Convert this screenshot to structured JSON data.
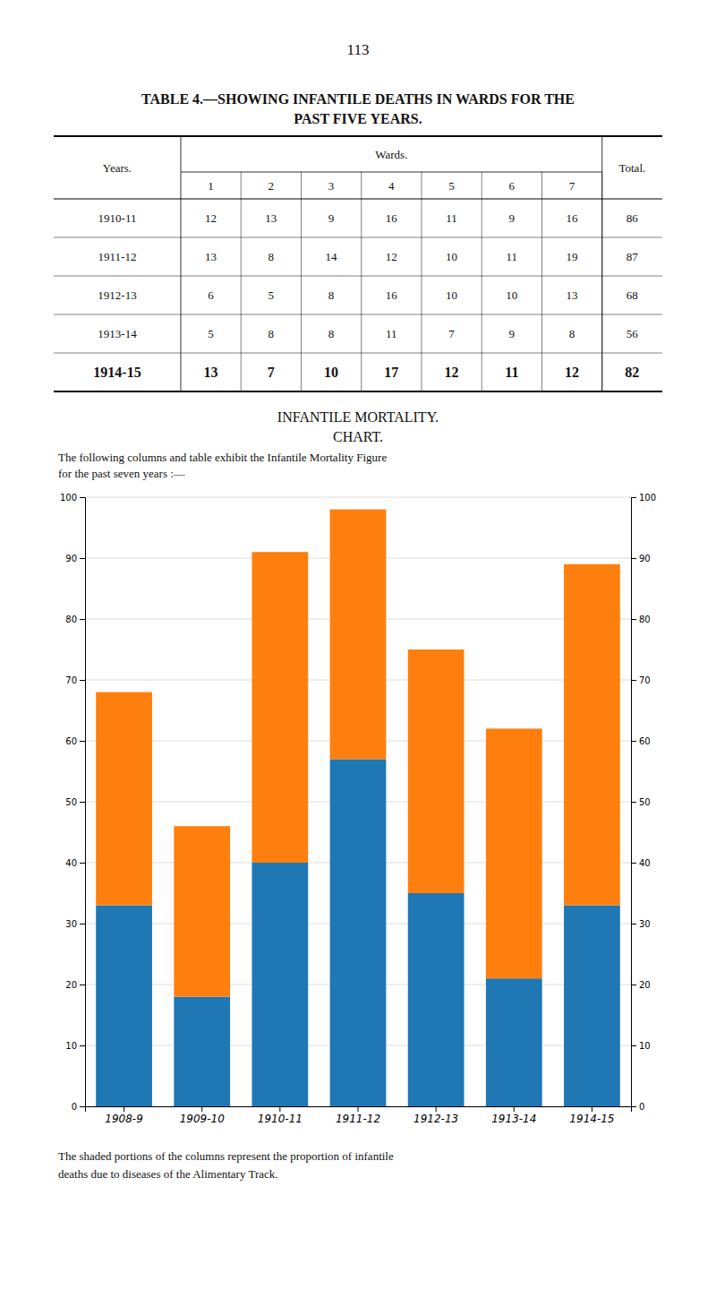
{
  "page": {
    "page_number": "113",
    "table_title": [
      "TABLE 4.—SHOWING INFANTILE DEATHS IN WARDS FOR THE",
      "PAST FIVE YEARS."
    ],
    "table": {
      "years_heading": "Years.",
      "wards_heading": "Wards.",
      "total_heading": "Total.",
      "ward_numbers": [
        "1",
        "2",
        "3",
        "4",
        "5",
        "6",
        "7"
      ],
      "rows": [
        [
          "1910-11",
          "12",
          "13",
          "9",
          "16",
          "11",
          "9",
          "16",
          "86"
        ],
        [
          "1911-12",
          "13",
          "8",
          "14",
          "12",
          "10",
          "11",
          "19",
          "87"
        ],
        [
          "1912-13",
          "6",
          "5",
          "8",
          "16",
          "10",
          "10",
          "13",
          "68"
        ],
        [
          "1913-14",
          "5",
          "8",
          "8",
          "11",
          "7",
          "9",
          "8",
          "56"
        ],
        [
          "1914-15",
          "13",
          "7",
          "10",
          "17",
          "12",
          "11",
          "12",
          "82"
        ]
      ],
      "bold_row": 4
    },
    "chart_description": [
      "The following columns and table exhibit the Infantile Mortality Figure",
      "for the past seven years :—"
    ],
    "caption": [
      "The shaded portions of the columns represent the proportion of infantile",
      "deaths due to diseases of the Alimentary Track."
    ]
  },
  "chart_data": {
    "type": "bar",
    "title": "INFANTILE MORTALITY.",
    "subtitle": "CHART.",
    "categories": [
      "1908-9",
      "1909-10",
      "1910-11",
      "1911-12",
      "1912-13",
      "1913-14",
      "1914-15"
    ],
    "series": [
      {
        "values": [
          33,
          18,
          40,
          57,
          35,
          21,
          33
        ]
      },
      {
        "values": [
          35,
          28,
          51,
          41,
          40,
          41,
          56
        ]
      }
    ],
    "stacked": true,
    "ylim": [
      0,
      100
    ],
    "yticks": [
      0,
      10,
      20,
      30,
      40,
      50,
      60,
      70,
      80,
      90,
      100
    ],
    "y2lim": [
      0,
      100
    ],
    "y2ticks": [
      0,
      10,
      20,
      30,
      40,
      50,
      60,
      70,
      80,
      90,
      100
    ],
    "grid": true
  }
}
